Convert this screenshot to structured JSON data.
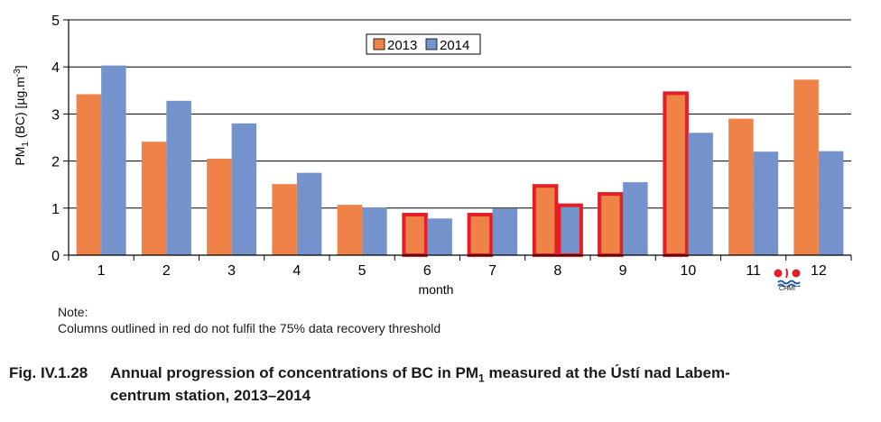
{
  "chart_data": {
    "type": "bar",
    "xlabel": "month",
    "ylabel": "PM1 (BC) [µg.m-3]",
    "ylim": [
      0,
      5
    ],
    "yticks": [
      0,
      1,
      2,
      3,
      4,
      5
    ],
    "grid": true,
    "legend_position": "top-center",
    "categories": [
      "1",
      "2",
      "3",
      "4",
      "5",
      "6",
      "7",
      "8",
      "9",
      "10",
      "11",
      "12"
    ],
    "series": [
      {
        "name": "2013",
        "color": "#ef8247",
        "values": [
          3.42,
          2.41,
          2.05,
          1.51,
          1.07,
          0.89,
          0.89,
          1.5,
          1.33,
          3.47,
          2.9,
          3.73
        ],
        "outlined_red": [
          false,
          false,
          false,
          false,
          false,
          true,
          true,
          true,
          true,
          true,
          false,
          false
        ]
      },
      {
        "name": "2014",
        "color": "#7493cc",
        "values": [
          4.03,
          3.28,
          2.8,
          1.75,
          1.01,
          0.78,
          0.99,
          1.09,
          1.55,
          2.6,
          2.2,
          2.21
        ],
        "outlined_red": [
          false,
          false,
          false,
          false,
          false,
          false,
          false,
          true,
          false,
          false,
          false,
          false
        ]
      }
    ]
  },
  "note": {
    "title": "Note:",
    "text": "Columns outlined in red do not fulfil the 75% data recovery threshold"
  },
  "caption": {
    "number": "Fig. IV.1.28",
    "text_before": "Annual progression of concentrations of BC in PM",
    "sub": "1",
    "text_after": " measured at the Ústí nad Labem-",
    "line2": "centrum station, 2013–2014"
  },
  "logo": {
    "text": "CHMI",
    "icon": "chmi-logo-icon"
  },
  "colors": {
    "outline": "#e31e24",
    "grid": "#000000"
  }
}
